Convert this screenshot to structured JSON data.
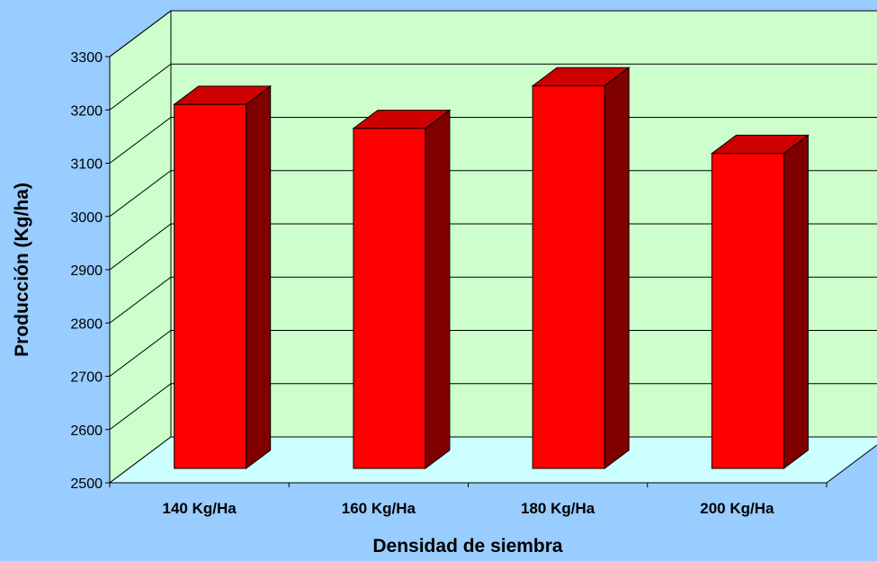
{
  "chart_data": {
    "type": "bar",
    "style": "3d-column",
    "categories": [
      "140 Kg/Ha",
      "160 Kg/Ha",
      "180 Kg/Ha",
      "200 Kg/Ha"
    ],
    "values": [
      3190,
      3145,
      3225,
      3098
    ],
    "xlabel": "Densidad de siembra",
    "ylabel": "Producción (Kg/ha)",
    "ylim": [
      2500,
      3300
    ],
    "yticks": [
      2500,
      2600,
      2700,
      2800,
      2900,
      3000,
      3100,
      3200,
      3300
    ],
    "grid": true,
    "legend": "none",
    "colors": {
      "background": "#99ccff",
      "back_wall": "#ccffcc",
      "floor": "#ccffff",
      "bar_front": "#ff0000",
      "bar_top": "#cc0000",
      "bar_side": "#800000"
    }
  }
}
